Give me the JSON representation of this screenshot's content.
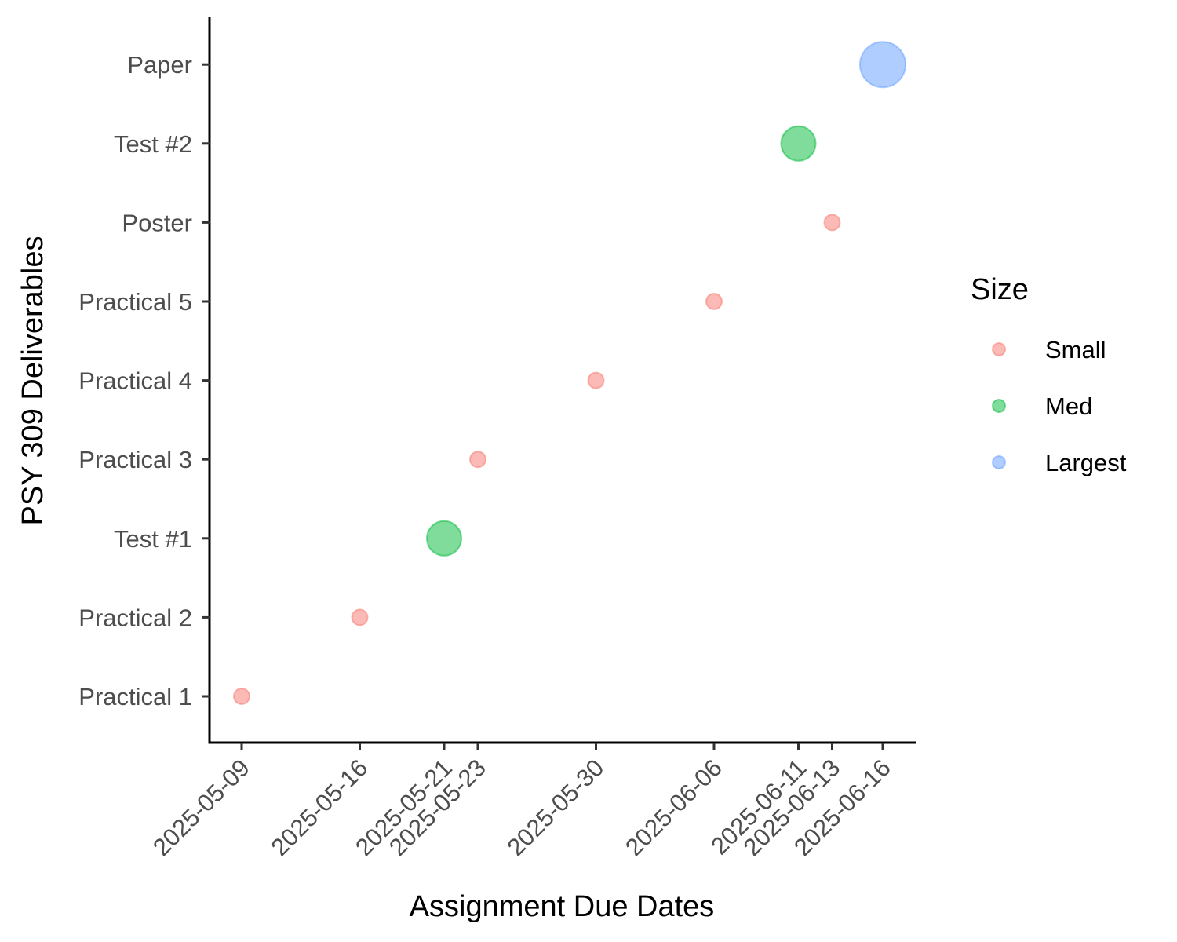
{
  "chart_data": {
    "type": "scatter",
    "title": "",
    "xlabel": "Assignment Due Dates",
    "ylabel": "PSY 309 Deliverables",
    "x_ticks": [
      "2025-05-09",
      "2025-05-16",
      "2025-05-21",
      "2025-05-23",
      "2025-05-30",
      "2025-06-06",
      "2025-06-11",
      "2025-06-13",
      "2025-06-16"
    ],
    "y_categories": [
      "Practical 1",
      "Practical 2",
      "Test #1",
      "Practical 3",
      "Practical 4",
      "Practical 5",
      "Poster",
      "Test #2",
      "Paper"
    ],
    "points": [
      {
        "label": "Practical 1",
        "date": "2025-05-09",
        "size": "Small"
      },
      {
        "label": "Practical 2",
        "date": "2025-05-16",
        "size": "Small"
      },
      {
        "label": "Test #1",
        "date": "2025-05-21",
        "size": "Med"
      },
      {
        "label": "Practical 3",
        "date": "2025-05-23",
        "size": "Small"
      },
      {
        "label": "Practical 4",
        "date": "2025-05-30",
        "size": "Small"
      },
      {
        "label": "Practical 5",
        "date": "2025-06-06",
        "size": "Small"
      },
      {
        "label": "Poster",
        "date": "2025-06-13",
        "size": "Small"
      },
      {
        "label": "Test #2",
        "date": "2025-06-11",
        "size": "Med"
      },
      {
        "label": "Paper",
        "date": "2025-06-16",
        "size": "Largest"
      }
    ],
    "legend": {
      "title": "Size",
      "position": "right",
      "entries": [
        {
          "name": "Small",
          "color": "#F8766D"
        },
        {
          "name": "Med",
          "color": "#00BA38"
        },
        {
          "name": "Largest",
          "color": "#619CFF"
        }
      ]
    },
    "grid": false
  }
}
